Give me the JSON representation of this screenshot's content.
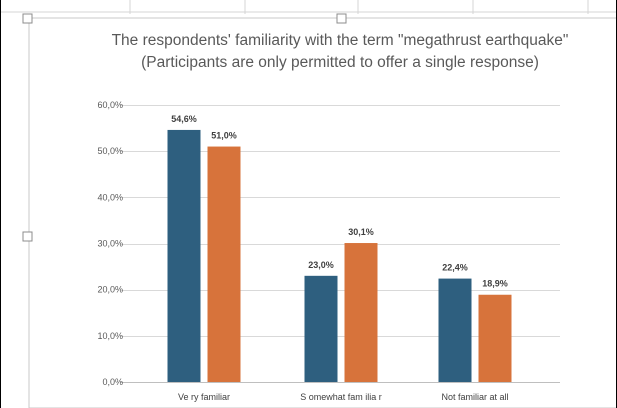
{
  "chart": {
    "title_line_1": "The respondents' familiarity with the term \"megathrust earthquake\"",
    "title_line_2": "(Participants are only permitted to offer a single response)"
  },
  "colors": {
    "series_1": "#2e5f7f",
    "series_2": "#d7733b",
    "gridline": "#d9d9d9",
    "sheet_grid": "#d4d4d4",
    "frame": "#000000"
  },
  "chart_data": {
    "type": "bar",
    "title": "The respondents' familiarity with the term \"megathrust earthquake\" (Participants are only permitted to offer a single response)",
    "categories": [
      "Ve ry familiar",
      "S omewhat fam ilia r",
      "Not familiar at all"
    ],
    "series": [
      {
        "values": [
          54.6,
          23.0,
          22.4
        ],
        "labels": [
          "54,6%",
          "23,0%",
          "22,4%"
        ],
        "color": "#2e5f7f"
      },
      {
        "values": [
          51.0,
          30.1,
          18.9
        ],
        "labels": [
          "51,0%",
          "30,1%",
          "18,9%"
        ],
        "color": "#d7733b"
      }
    ],
    "ylim": [
      0,
      60
    ],
    "yticks": [
      0,
      10,
      20,
      30,
      40,
      50,
      60
    ],
    "ytick_labels": [
      "0,0%",
      "10,0%",
      "20,0%",
      "30,0%",
      "40,0%",
      "50,0%",
      "60,0%"
    ],
    "grid": true,
    "legend": "none",
    "xlabel": "",
    "ylabel": ""
  }
}
